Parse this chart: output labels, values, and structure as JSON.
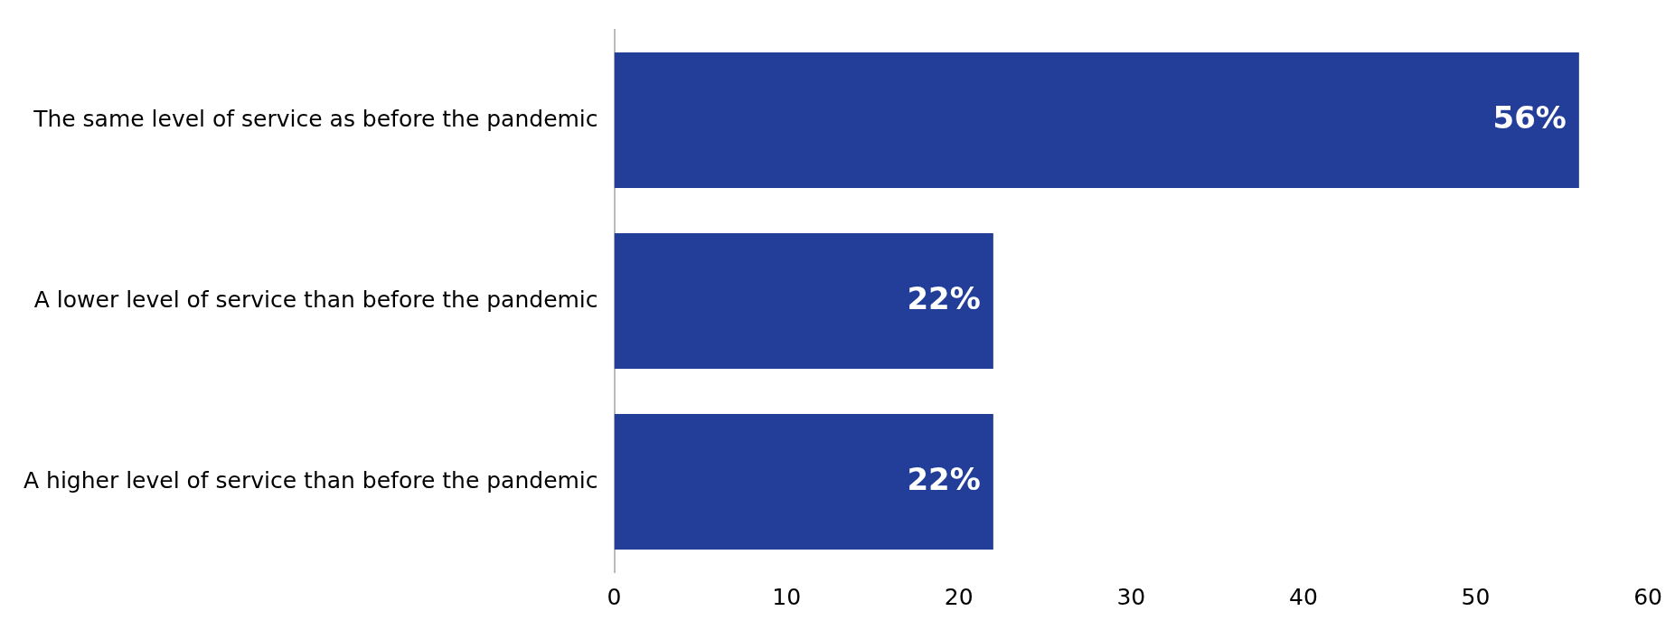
{
  "chart_data": {
    "type": "bar",
    "orientation": "horizontal",
    "categories": [
      "The same level of service as before the pandemic",
      "A lower level of service than before the pandemic",
      "A higher level of service than before the pandemic"
    ],
    "values": [
      56,
      22,
      22
    ],
    "value_labels": [
      "56%",
      "22%",
      "22%"
    ],
    "color": "#223e99",
    "xlim": [
      0,
      60
    ],
    "xticks": [
      0,
      10,
      20,
      30,
      40,
      50,
      60
    ],
    "grid": false,
    "legend": false
  }
}
